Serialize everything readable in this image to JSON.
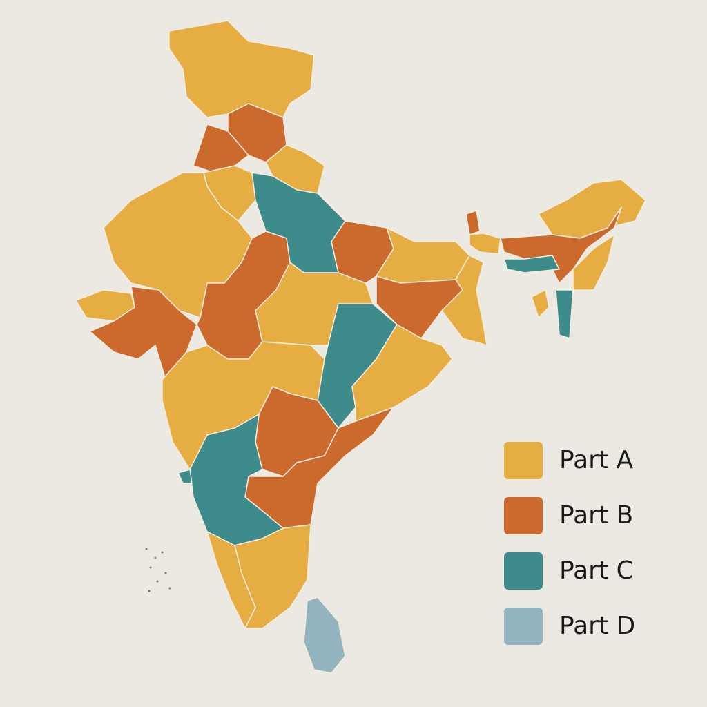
{
  "legend": [
    {
      "label": "Part A",
      "color": "#e5ad42"
    },
    {
      "label": "Part B",
      "color": "#cc6a2e"
    },
    {
      "label": "Part C",
      "color": "#3e8b8c"
    },
    {
      "label": "Part D",
      "color": "#93b3be"
    }
  ]
}
